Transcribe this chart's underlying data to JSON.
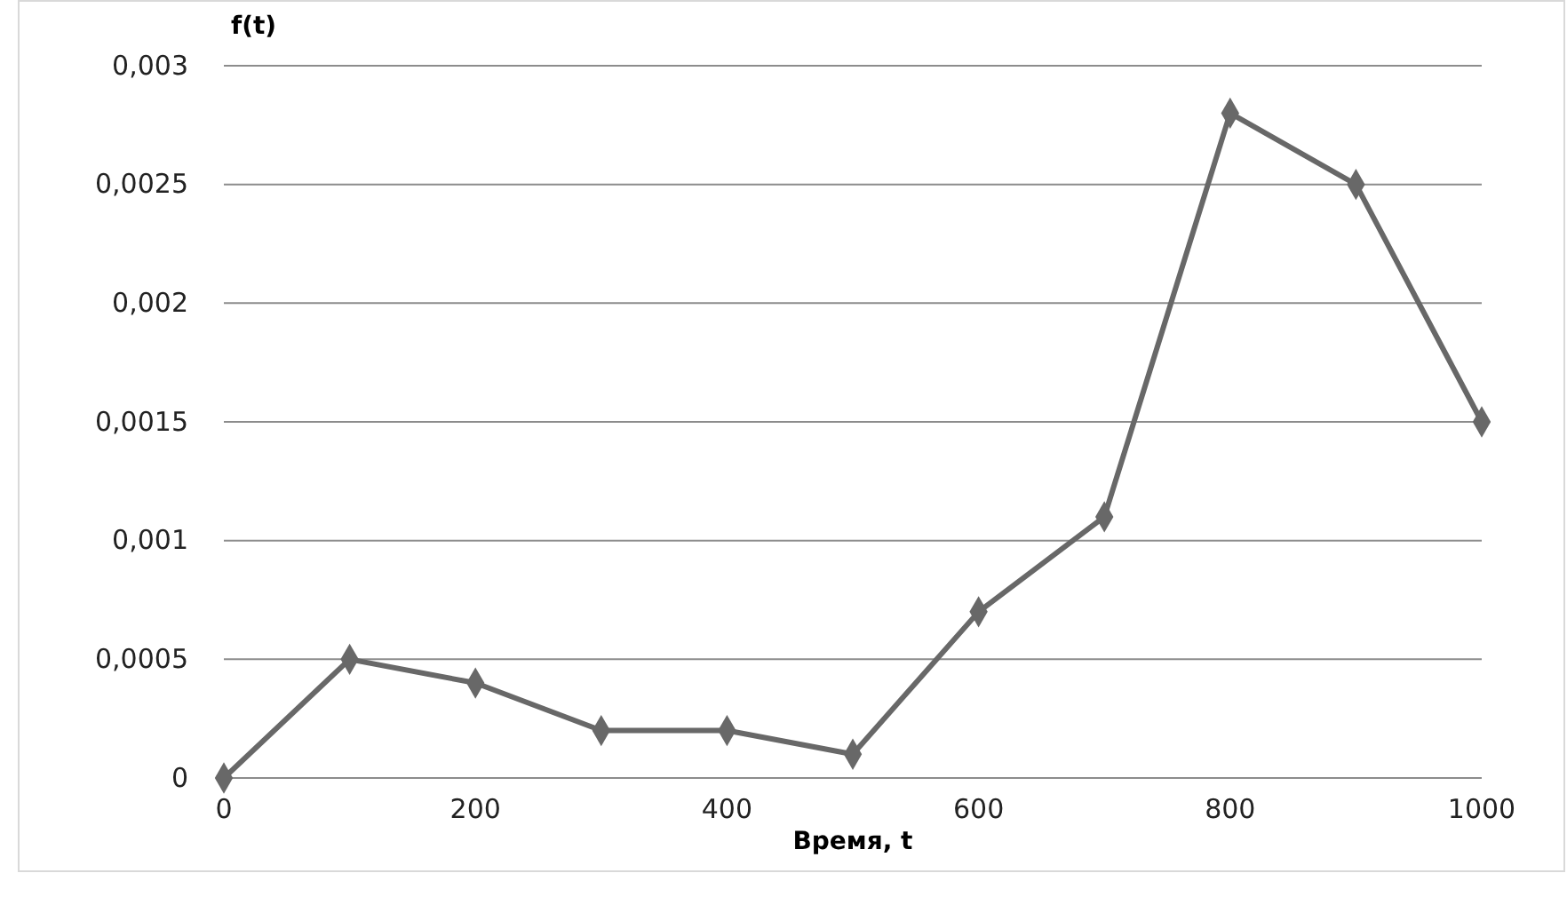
{
  "chart_data": {
    "type": "line",
    "xlabel": "Время, t",
    "ylabel": "f(t)",
    "x": [
      0,
      100,
      200,
      300,
      400,
      500,
      600,
      700,
      800,
      900,
      1000
    ],
    "series": [
      {
        "color": "#686868",
        "values": [
          0,
          0.0005,
          0.0004,
          0.0002,
          0.0002,
          0.0001,
          0.0007,
          0.0011,
          0.0028,
          0.0025,
          0.0015
        ]
      }
    ],
    "xlim": [
      0,
      1000
    ],
    "xticks": [
      0,
      200,
      400,
      600,
      800,
      1000
    ],
    "ylim": [
      0,
      0.003
    ],
    "yticks": [
      0,
      {
        "value": 0.0005,
        "label": "0,0005"
      },
      {
        "value": 0.001,
        "label": "0,001"
      },
      {
        "value": 0.0015,
        "label": "0,0015"
      },
      {
        "value": 0.002,
        "label": "0,002"
      },
      {
        "value": 0.0025,
        "label": "0,0025"
      },
      {
        "value": 0.003,
        "label": "0,003"
      }
    ],
    "grid": "y",
    "marker": "diamond",
    "line_style": "solid"
  }
}
